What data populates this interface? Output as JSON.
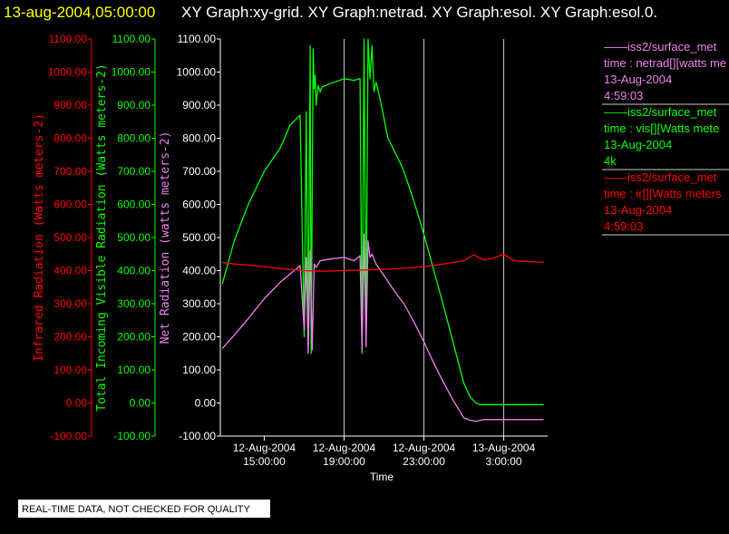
{
  "header": {
    "timestamp": "13-aug-2004,05:00:00",
    "graphs": "XY Graph:xy-grid.  XY Graph:netrad.  XY Graph:esol.  XY Graph:esol.0."
  },
  "footer": {
    "note": "REAL-TIME DATA, NOT CHECKED FOR QUALITY"
  },
  "legend": [
    {
      "source": "——iss2/surface_met",
      "label": "time : netrad[][watts me",
      "date": "13-Aug-2004",
      "extra": "4:59:03",
      "color": "#ee82ee"
    },
    {
      "source": "——iss2/surface_met",
      "label": "time : vis[][Watts mete",
      "date": "13-Aug-2004",
      "extra": "4k",
      "color": "#00ff00"
    },
    {
      "source": "——iss2/surface_met",
      "label": "time : ir[][Watts meters",
      "date": "13-Aug-2004",
      "extra": "4:59:03",
      "color": "#ff0000"
    }
  ],
  "colors": {
    "ir": "#ff0000",
    "vis": "#00ff00",
    "net": "#ee82ee",
    "grid": "#c8c8c8",
    "text": "#ffffff",
    "header_time": "#ffff00"
  },
  "chart_data": {
    "type": "line",
    "xlabel": "Time",
    "x_ticks": [
      {
        "date": "12-Aug-2004",
        "time": "15:00:00",
        "x": 15
      },
      {
        "date": "12-Aug-2004",
        "time": "19:00:00",
        "x": 19
      },
      {
        "date": "12-Aug-2004",
        "time": "23:00:00",
        "x": 23
      },
      {
        "date": "13-Aug-2004",
        "time": "3:00:00",
        "x": 27
      }
    ],
    "xlim": [
      12.8,
      29.2
    ],
    "vertical_gridlines": [
      19,
      23,
      27
    ],
    "y_axes": [
      {
        "id": "ir",
        "label": "Infrared Radiation (Watts meters-2)",
        "ylim": [
          -100,
          1100
        ],
        "ticks": [
          "1100.00",
          "1000.00",
          "900.00",
          "800.00",
          "700.00",
          "600.00",
          "500.00",
          "400.00",
          "300.00",
          "200.00",
          "100.00",
          "0.00",
          "-100.00"
        ]
      },
      {
        "id": "vis",
        "label": "Total Incoming Visible Radiation (Watts meters-2)",
        "ylim": [
          -100,
          1100
        ],
        "ticks": [
          "1100.00",
          "1000.00",
          "900.00",
          "800.00",
          "700.00",
          "600.00",
          "500.00",
          "400.00",
          "300.00",
          "200.00",
          "100.00",
          "0.00",
          "-100.00"
        ]
      },
      {
        "id": "net",
        "label": "Net Radiation (watts meters-2)",
        "ylim": [
          -100,
          1100
        ],
        "ticks": [
          "1100.00",
          "1000.00",
          "900.00",
          "800.00",
          "700.00",
          "600.00",
          "500.00",
          "400.00",
          "300.00",
          "200.00",
          "100.00",
          "0.00",
          "-100.00"
        ]
      }
    ],
    "series": [
      {
        "id": "vis",
        "name": "time : vis[][Watts mete",
        "color": "#00ff00",
        "x": [
          12.9,
          13.5,
          14.2,
          15.0,
          15.8,
          16.3,
          16.8,
          17.0,
          17.1,
          17.2,
          17.3,
          17.35,
          17.45,
          17.5,
          17.55,
          17.6,
          17.7,
          17.8,
          17.9,
          18.3,
          19.0,
          19.5,
          19.8,
          19.9,
          20.0,
          20.1,
          20.2,
          20.3,
          20.4,
          20.5,
          20.6,
          20.8,
          21.2,
          21.7,
          22.0,
          22.5,
          23.0,
          23.5,
          24.0,
          24.5,
          25.0,
          25.3,
          25.6,
          25.8,
          26.0,
          26.5,
          27.0,
          27.5,
          28.0,
          28.5,
          29.0
        ],
        "y": [
          360,
          490,
          600,
          700,
          770,
          840,
          870,
          200,
          880,
          170,
          1080,
          150,
          1070,
          950,
          990,
          900,
          960,
          940,
          955,
          965,
          980,
          975,
          980,
          150,
          1100,
          180,
          1100,
          980,
          1080,
          940,
          970,
          920,
          800,
          740,
          700,
          610,
          510,
          400,
          290,
          175,
          60,
          20,
          0,
          -5,
          -5,
          -5,
          -5,
          -5,
          -5,
          -5,
          -5
        ]
      },
      {
        "id": "net",
        "name": "time : netrad[][watts me",
        "color": "#ee82ee",
        "x": [
          12.9,
          13.5,
          14.2,
          15.0,
          15.8,
          16.3,
          16.8,
          17.0,
          17.1,
          17.2,
          17.3,
          17.4,
          17.5,
          17.6,
          17.8,
          18.3,
          19.0,
          19.5,
          19.8,
          19.9,
          20.0,
          20.1,
          20.2,
          20.3,
          20.4,
          20.6,
          21.0,
          21.5,
          22.0,
          22.5,
          23.0,
          23.5,
          24.0,
          24.5,
          25.0,
          25.3,
          25.6,
          26.0,
          26.5,
          27.0,
          27.5,
          28.0,
          28.5,
          29.0
        ],
        "y": [
          165,
          205,
          255,
          315,
          365,
          390,
          415,
          220,
          440,
          150,
          460,
          160,
          420,
          410,
          430,
          435,
          440,
          430,
          445,
          160,
          510,
          170,
          490,
          440,
          450,
          420,
          385,
          340,
          300,
          245,
          185,
          120,
          60,
          5,
          -45,
          -52,
          -55,
          -50,
          -50,
          -50,
          -50,
          -50,
          -50,
          -50
        ]
      },
      {
        "id": "ir",
        "name": "time : ir[][Watts meters",
        "color": "#ff0000",
        "x": [
          12.9,
          13.5,
          14.0,
          15.0,
          16.0,
          17.0,
          18.0,
          19.0,
          20.0,
          21.0,
          22.0,
          23.0,
          24.0,
          25.0,
          25.5,
          26.0,
          26.5,
          27.0,
          27.5,
          28.0,
          29.0
        ],
        "y": [
          425,
          420,
          418,
          412,
          405,
          400,
          398,
          400,
          402,
          404,
          407,
          412,
          420,
          430,
          448,
          432,
          438,
          450,
          430,
          428,
          425
        ]
      }
    ]
  }
}
